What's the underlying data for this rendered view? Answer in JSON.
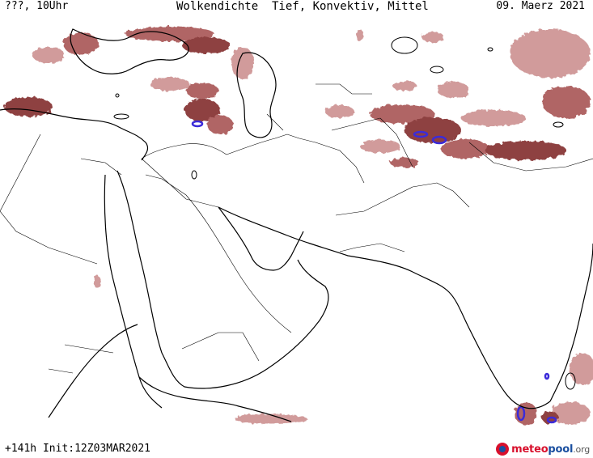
{
  "header": {
    "left_label": "???, 10Uhr",
    "title": "Wolkendichte  Tief, Konvektiv, Mittel",
    "date": "09. Maerz 2021"
  },
  "footer": {
    "run_info": "+141h Init:12Z03MAR2021"
  },
  "logo": {
    "meteo": "meteo",
    "pool": "pool",
    "org": ".org"
  },
  "colors": {
    "cloud_low": "#c98a8a",
    "cloud_mid": "#a34a4a",
    "cloud_dense": "#7a1e1e",
    "convective": "#3b2bd9",
    "coastline": "#000000",
    "border": "#000000"
  }
}
